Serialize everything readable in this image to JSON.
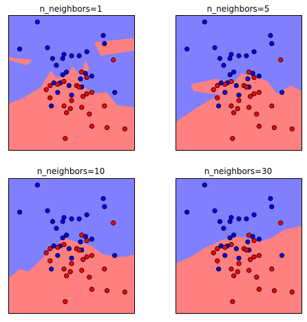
{
  "chart_data": [
    {
      "type": "scatter",
      "title": "n_neighbors=1",
      "xlim": [
        0,
        10
      ],
      "ylim": [
        0,
        10
      ],
      "ticks": "none",
      "region_colors": {
        "class_0": "#8080ff",
        "class_1": "#ff8080"
      },
      "point_colors": {
        "class_0": "#0000ff",
        "class_1": "#ff0000"
      },
      "decision_boundary": [
        [
          0,
          3.45
        ],
        [
          1.2,
          3.9
        ],
        [
          2.6,
          4.7
        ],
        [
          3.35,
          5.9
        ],
        [
          3.8,
          5.4
        ],
        [
          4.6,
          5.5
        ],
        [
          5.1,
          6.2
        ],
        [
          5.7,
          5.5
        ],
        [
          6.1,
          6.7
        ],
        [
          6.4,
          6.0
        ],
        [
          5.6,
          5.1
        ],
        [
          6.6,
          4.2
        ],
        [
          7.8,
          4.3
        ],
        [
          8.6,
          3.35
        ],
        [
          10,
          3.2
        ]
      ],
      "boundary_islands": [
        [
          [
            0,
            6.7
          ],
          [
            1.5,
            6.3
          ],
          [
            1.9,
            6.7
          ],
          [
            0,
            6.9
          ]
        ],
        [
          [
            6.8,
            8.0
          ],
          [
            10,
            8.3
          ],
          [
            10,
            7.4
          ],
          [
            7.3,
            7.0
          ]
        ],
        [
          [
            3.9,
            4.5
          ],
          [
            4.5,
            4.6
          ],
          [
            4.8,
            3.9
          ],
          [
            4.0,
            3.9
          ]
        ]
      ],
      "class_0": [
        [
          2.3,
          9.5
        ],
        [
          0.9,
          7.5
        ],
        [
          3.1,
          7.6
        ],
        [
          4.4,
          7.1
        ],
        [
          5.0,
          7.0
        ],
        [
          5.6,
          7.0
        ],
        [
          6.2,
          7.3
        ],
        [
          7.5,
          8.5
        ],
        [
          7.6,
          7.9
        ],
        [
          6.1,
          5.7
        ],
        [
          3.5,
          6.8
        ],
        [
          3.8,
          6.3
        ],
        [
          4.3,
          6.8
        ],
        [
          6.6,
          5.5
        ],
        [
          5.8,
          4.7
        ],
        [
          4.3,
          5.6
        ],
        [
          4.1,
          5.0
        ],
        [
          4.6,
          5.8
        ],
        [
          3.6,
          5.0
        ],
        [
          3.9,
          4.3
        ],
        [
          5.7,
          5.3
        ],
        [
          8.4,
          4.3
        ],
        [
          3.4,
          3.3
        ],
        [
          4.8,
          4.8
        ],
        [
          5.0,
          4.1
        ]
      ],
      "class_1": [
        [
          8.3,
          6.7
        ],
        [
          3.0,
          4.5
        ],
        [
          3.3,
          4.8
        ],
        [
          5.8,
          5.8
        ],
        [
          6.2,
          5.4
        ],
        [
          4.4,
          5.1
        ],
        [
          6.6,
          4.3
        ],
        [
          3.9,
          4.9
        ],
        [
          5.9,
          4.0
        ],
        [
          6.2,
          4.2
        ],
        [
          5.4,
          4.8
        ],
        [
          5.6,
          4.7
        ],
        [
          5.0,
          3.7
        ],
        [
          7.6,
          3.3
        ],
        [
          4.4,
          3.3
        ],
        [
          5.8,
          3.2
        ],
        [
          4.9,
          3.1
        ],
        [
          3.3,
          3.9
        ],
        [
          4.6,
          2.8
        ],
        [
          6.4,
          2.7
        ],
        [
          7.8,
          1.7
        ],
        [
          9.2,
          1.6
        ],
        [
          6.6,
          1.8
        ],
        [
          4.5,
          0.9
        ]
      ]
    },
    {
      "type": "scatter",
      "title": "n_neighbors=5",
      "xlim": [
        0,
        10
      ],
      "ylim": [
        0,
        10
      ],
      "ticks": "none",
      "region_colors": {
        "class_0": "#8080ff",
        "class_1": "#ff8080"
      },
      "point_colors": {
        "class_0": "#0000ff",
        "class_1": "#ff0000"
      },
      "decision_boundary": [
        [
          0,
          2.1
        ],
        [
          1.4,
          3.0
        ],
        [
          2.8,
          3.8
        ],
        [
          3.6,
          4.1
        ],
        [
          1.4,
          4.4
        ],
        [
          1.2,
          4.9
        ],
        [
          3.2,
          5.3
        ],
        [
          4.6,
          5.0
        ],
        [
          5.2,
          5.7
        ],
        [
          6.3,
          5.5
        ],
        [
          7.3,
          5.1
        ],
        [
          8.0,
          4.2
        ],
        [
          9.1,
          4.8
        ],
        [
          10,
          4.4
        ]
      ],
      "boundary_islands": [],
      "class_0": [
        [
          2.3,
          9.5
        ],
        [
          0.9,
          7.5
        ],
        [
          3.1,
          7.6
        ],
        [
          4.4,
          7.1
        ],
        [
          5.0,
          7.0
        ],
        [
          5.6,
          7.0
        ],
        [
          6.2,
          7.3
        ],
        [
          7.5,
          8.5
        ],
        [
          7.6,
          7.9
        ],
        [
          6.1,
          5.7
        ],
        [
          3.5,
          6.8
        ],
        [
          3.8,
          6.3
        ],
        [
          4.3,
          6.8
        ],
        [
          6.6,
          5.5
        ],
        [
          5.8,
          4.7
        ],
        [
          4.3,
          5.6
        ],
        [
          4.1,
          5.0
        ],
        [
          4.6,
          5.8
        ],
        [
          3.6,
          5.0
        ],
        [
          3.9,
          4.3
        ],
        [
          5.7,
          5.3
        ],
        [
          8.4,
          4.3
        ],
        [
          3.4,
          3.3
        ],
        [
          4.8,
          4.8
        ],
        [
          5.0,
          4.1
        ]
      ],
      "class_1": [
        [
          8.3,
          6.7
        ],
        [
          3.0,
          4.5
        ],
        [
          3.3,
          4.8
        ],
        [
          5.8,
          5.8
        ],
        [
          6.2,
          5.4
        ],
        [
          4.4,
          5.1
        ],
        [
          6.6,
          4.3
        ],
        [
          3.9,
          4.9
        ],
        [
          5.9,
          4.0
        ],
        [
          6.2,
          4.2
        ],
        [
          5.4,
          4.8
        ],
        [
          5.6,
          4.7
        ],
        [
          5.0,
          3.7
        ],
        [
          7.6,
          3.3
        ],
        [
          4.4,
          3.3
        ],
        [
          5.8,
          3.2
        ],
        [
          4.9,
          3.1
        ],
        [
          3.3,
          3.9
        ],
        [
          4.6,
          2.8
        ],
        [
          6.4,
          2.7
        ],
        [
          7.8,
          1.7
        ],
        [
          9.2,
          1.6
        ],
        [
          6.6,
          1.8
        ],
        [
          4.5,
          0.9
        ]
      ]
    },
    {
      "type": "scatter",
      "title": "n_neighbors=10",
      "xlim": [
        0,
        10
      ],
      "ylim": [
        0,
        10
      ],
      "ticks": "none",
      "region_colors": {
        "class_0": "#8080ff",
        "class_1": "#ff8080"
      },
      "point_colors": {
        "class_0": "#0000ff",
        "class_1": "#ff0000"
      },
      "decision_boundary": [
        [
          0,
          2.6
        ],
        [
          0.9,
          3.3
        ],
        [
          1.6,
          3.1
        ],
        [
          2.8,
          4.2
        ],
        [
          3.8,
          5.0
        ],
        [
          4.3,
          5.6
        ],
        [
          5.4,
          5.3
        ],
        [
          6.6,
          5.0
        ],
        [
          7.4,
          4.4
        ],
        [
          8.5,
          4.2
        ],
        [
          9.3,
          4.2
        ],
        [
          10,
          4.4
        ]
      ],
      "boundary_islands": [],
      "class_0": [
        [
          2.3,
          9.5
        ],
        [
          0.9,
          7.5
        ],
        [
          3.1,
          7.6
        ],
        [
          4.4,
          7.1
        ],
        [
          5.0,
          7.0
        ],
        [
          5.6,
          7.0
        ],
        [
          6.2,
          7.3
        ],
        [
          7.5,
          8.5
        ],
        [
          7.6,
          7.9
        ],
        [
          6.1,
          5.7
        ],
        [
          3.5,
          6.8
        ],
        [
          3.8,
          6.3
        ],
        [
          4.3,
          6.8
        ],
        [
          6.6,
          5.5
        ],
        [
          5.8,
          4.7
        ],
        [
          4.3,
          5.6
        ],
        [
          4.1,
          5.0
        ],
        [
          4.6,
          5.8
        ],
        [
          3.6,
          5.0
        ],
        [
          3.9,
          4.3
        ],
        [
          5.7,
          5.3
        ],
        [
          8.4,
          4.3
        ],
        [
          3.4,
          3.3
        ],
        [
          4.8,
          4.8
        ],
        [
          5.0,
          4.1
        ]
      ],
      "class_1": [
        [
          8.3,
          6.7
        ],
        [
          3.0,
          4.5
        ],
        [
          3.3,
          4.8
        ],
        [
          5.8,
          5.8
        ],
        [
          6.2,
          5.4
        ],
        [
          4.4,
          5.1
        ],
        [
          6.6,
          4.3
        ],
        [
          3.9,
          4.9
        ],
        [
          5.9,
          4.0
        ],
        [
          6.2,
          4.2
        ],
        [
          5.4,
          4.8
        ],
        [
          5.6,
          4.7
        ],
        [
          5.0,
          3.7
        ],
        [
          7.6,
          3.3
        ],
        [
          4.4,
          3.3
        ],
        [
          5.8,
          3.2
        ],
        [
          4.9,
          3.1
        ],
        [
          3.3,
          3.9
        ],
        [
          4.6,
          2.8
        ],
        [
          6.4,
          2.7
        ],
        [
          7.8,
          1.7
        ],
        [
          9.2,
          1.6
        ],
        [
          6.6,
          1.8
        ],
        [
          4.5,
          0.9
        ]
      ]
    },
    {
      "type": "scatter",
      "title": "n_neighbors=30",
      "xlim": [
        0,
        10
      ],
      "ylim": [
        0,
        10
      ],
      "ticks": "none",
      "region_colors": {
        "class_0": "#8080ff",
        "class_1": "#ff8080"
      },
      "point_colors": {
        "class_0": "#0000ff",
        "class_1": "#ff0000"
      },
      "decision_boundary": [
        [
          0,
          3.7
        ],
        [
          1.2,
          4.2
        ],
        [
          2.4,
          4.9
        ],
        [
          3.6,
          5.4
        ],
        [
          4.6,
          5.7
        ],
        [
          5.6,
          5.6
        ],
        [
          6.6,
          5.3
        ],
        [
          7.6,
          5.6
        ],
        [
          8.6,
          6.2
        ],
        [
          10,
          6.5
        ]
      ],
      "boundary_islands": [],
      "class_0": [
        [
          2.3,
          9.5
        ],
        [
          0.9,
          7.5
        ],
        [
          3.1,
          7.6
        ],
        [
          4.4,
          7.1
        ],
        [
          5.0,
          7.0
        ],
        [
          5.6,
          7.0
        ],
        [
          6.2,
          7.3
        ],
        [
          7.5,
          8.5
        ],
        [
          7.6,
          7.9
        ],
        [
          6.1,
          5.7
        ],
        [
          3.5,
          6.8
        ],
        [
          3.8,
          6.3
        ],
        [
          4.3,
          6.8
        ],
        [
          6.6,
          5.5
        ],
        [
          5.8,
          4.7
        ],
        [
          4.3,
          5.6
        ],
        [
          4.1,
          5.0
        ],
        [
          4.6,
          5.8
        ],
        [
          3.6,
          5.0
        ],
        [
          3.9,
          4.3
        ],
        [
          5.7,
          5.3
        ],
        [
          8.4,
          4.3
        ],
        [
          3.4,
          3.3
        ],
        [
          4.8,
          4.8
        ],
        [
          5.0,
          4.1
        ]
      ],
      "class_1": [
        [
          8.3,
          6.7
        ],
        [
          3.0,
          4.5
        ],
        [
          3.3,
          4.8
        ],
        [
          5.8,
          5.8
        ],
        [
          6.2,
          5.4
        ],
        [
          4.4,
          5.1
        ],
        [
          6.6,
          4.3
        ],
        [
          3.9,
          4.9
        ],
        [
          5.9,
          4.0
        ],
        [
          6.2,
          4.2
        ],
        [
          5.4,
          4.8
        ],
        [
          5.6,
          4.7
        ],
        [
          5.0,
          3.7
        ],
        [
          7.6,
          3.3
        ],
        [
          4.4,
          3.3
        ],
        [
          5.8,
          3.2
        ],
        [
          4.9,
          3.1
        ],
        [
          3.3,
          3.9
        ],
        [
          4.6,
          2.8
        ],
        [
          6.4,
          2.7
        ],
        [
          7.8,
          1.7
        ],
        [
          9.2,
          1.6
        ],
        [
          6.6,
          1.8
        ],
        [
          4.5,
          0.9
        ]
      ]
    }
  ]
}
